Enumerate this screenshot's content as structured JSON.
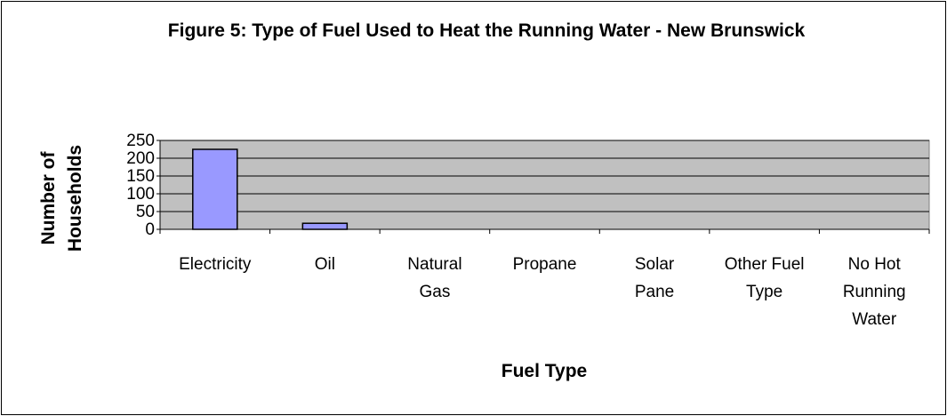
{
  "chart_data": {
    "type": "bar",
    "title": "Figure 5: Type of Fuel Used to Heat the Running Water - New Brunswick",
    "x_label": "Fuel Type",
    "y_label": "Number of Households",
    "categories": [
      "Electricity",
      "Oil",
      "Natural Gas",
      "Propane",
      "Solar Pane",
      "Other Fuel Type",
      "No Hot Running Water"
    ],
    "values": [
      225,
      17,
      0,
      0,
      0,
      0,
      0
    ],
    "color": "#9999ff",
    "ylim": [
      0,
      250
    ],
    "yticks": [
      0,
      50,
      100,
      150,
      200,
      250
    ],
    "grid": true
  }
}
